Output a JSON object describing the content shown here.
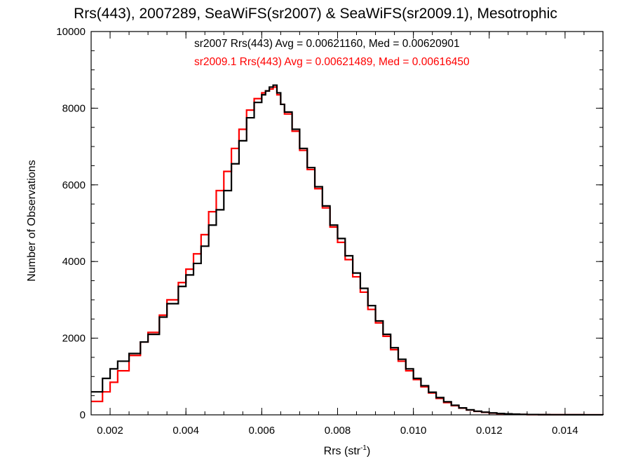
{
  "colors": {
    "sr2007": "#000000",
    "sr2009": "#ff0000",
    "axes": "#000000"
  },
  "chart_data": {
    "type": "line",
    "title": "Rrs(443), 2007289, SeaWiFS(sr2007) & SeaWiFS(sr2009.1), Mesotrophic",
    "xlabel_main": "Rrs (str",
    "xlabel_sup": "-1",
    "xlabel_close": ")",
    "ylabel": "Number of Observations",
    "xlim": [
      0.0015,
      0.015
    ],
    "ylim": [
      0,
      10000
    ],
    "xticks": [
      0.002,
      0.004,
      0.006,
      0.008,
      0.01,
      0.012,
      0.014
    ],
    "xtick_labels": [
      "0.002",
      "0.004",
      "0.006",
      "0.008",
      "0.010",
      "0.012",
      "0.014"
    ],
    "yticks": [
      0,
      2000,
      4000,
      6000,
      8000,
      10000
    ],
    "ytick_labels": [
      "0",
      "2000",
      "4000",
      "6000",
      "8000",
      "10000"
    ],
    "annotations": [
      "sr2007 Rrs(443) Avg = 0.00621160, Med = 0.00620901",
      "sr2009.1 Rrs(443) Avg = 0.00621489, Med = 0.00616450"
    ],
    "step": true,
    "series": [
      {
        "key": "sr2007",
        "x": [
          0.0015,
          0.0018,
          0.002,
          0.0022,
          0.0025,
          0.0028,
          0.003,
          0.0033,
          0.0035,
          0.0038,
          0.004,
          0.0042,
          0.0044,
          0.0046,
          0.0048,
          0.005,
          0.0052,
          0.0054,
          0.0056,
          0.0058,
          0.006,
          0.0061,
          0.0062,
          0.0063,
          0.0064,
          0.0065,
          0.0066,
          0.0068,
          0.007,
          0.0072,
          0.0074,
          0.0076,
          0.0078,
          0.008,
          0.0082,
          0.0084,
          0.0086,
          0.0088,
          0.009,
          0.0092,
          0.0094,
          0.0096,
          0.0098,
          0.01,
          0.0102,
          0.0104,
          0.0106,
          0.0108,
          0.011,
          0.0112,
          0.0114,
          0.0116,
          0.0118,
          0.012,
          0.0122,
          0.0124,
          0.0126,
          0.0128,
          0.013,
          0.0133,
          0.0136,
          0.014,
          0.0145,
          0.015
        ],
        "y": [
          600,
          950,
          1200,
          1400,
          1600,
          1900,
          2100,
          2550,
          2900,
          3350,
          3650,
          3950,
          4400,
          4950,
          5350,
          5850,
          6550,
          7150,
          7750,
          8150,
          8350,
          8450,
          8550,
          8600,
          8400,
          8100,
          7900,
          7450,
          6950,
          6450,
          5950,
          5450,
          4950,
          4600,
          4150,
          3700,
          3300,
          2850,
          2450,
          2100,
          1750,
          1450,
          1200,
          950,
          760,
          590,
          450,
          340,
          250,
          180,
          130,
          95,
          70,
          50,
          35,
          25,
          18,
          12,
          8,
          5,
          3,
          2,
          1,
          0
        ]
      },
      {
        "key": "sr2009",
        "x": [
          0.0015,
          0.0018,
          0.002,
          0.0022,
          0.0025,
          0.0028,
          0.003,
          0.0033,
          0.0035,
          0.0038,
          0.004,
          0.0042,
          0.0044,
          0.0046,
          0.0048,
          0.005,
          0.0052,
          0.0054,
          0.0056,
          0.0058,
          0.006,
          0.0061,
          0.0062,
          0.0063,
          0.0064,
          0.0065,
          0.0066,
          0.0068,
          0.007,
          0.0072,
          0.0074,
          0.0076,
          0.0078,
          0.008,
          0.0082,
          0.0084,
          0.0086,
          0.0088,
          0.009,
          0.0092,
          0.0094,
          0.0096,
          0.0098,
          0.01,
          0.0102,
          0.0104,
          0.0106,
          0.0108,
          0.011,
          0.0112,
          0.0114,
          0.0116,
          0.0118,
          0.012,
          0.0122,
          0.0124,
          0.0126,
          0.0128,
          0.013,
          0.0133,
          0.0136,
          0.014,
          0.0145,
          0.015
        ],
        "y": [
          350,
          600,
          850,
          1150,
          1550,
          1900,
          2150,
          2600,
          3000,
          3450,
          3800,
          4200,
          4700,
          5300,
          5850,
          6350,
          6950,
          7450,
          7950,
          8250,
          8400,
          8450,
          8500,
          8550,
          8350,
          8100,
          7850,
          7400,
          6900,
          6400,
          5900,
          5400,
          4900,
          4500,
          4050,
          3600,
          3200,
          2750,
          2400,
          2050,
          1700,
          1400,
          1150,
          920,
          730,
          570,
          430,
          320,
          240,
          175,
          125,
          90,
          65,
          45,
          32,
          22,
          15,
          10,
          7,
          4,
          3,
          2,
          1,
          0
        ]
      }
    ]
  }
}
